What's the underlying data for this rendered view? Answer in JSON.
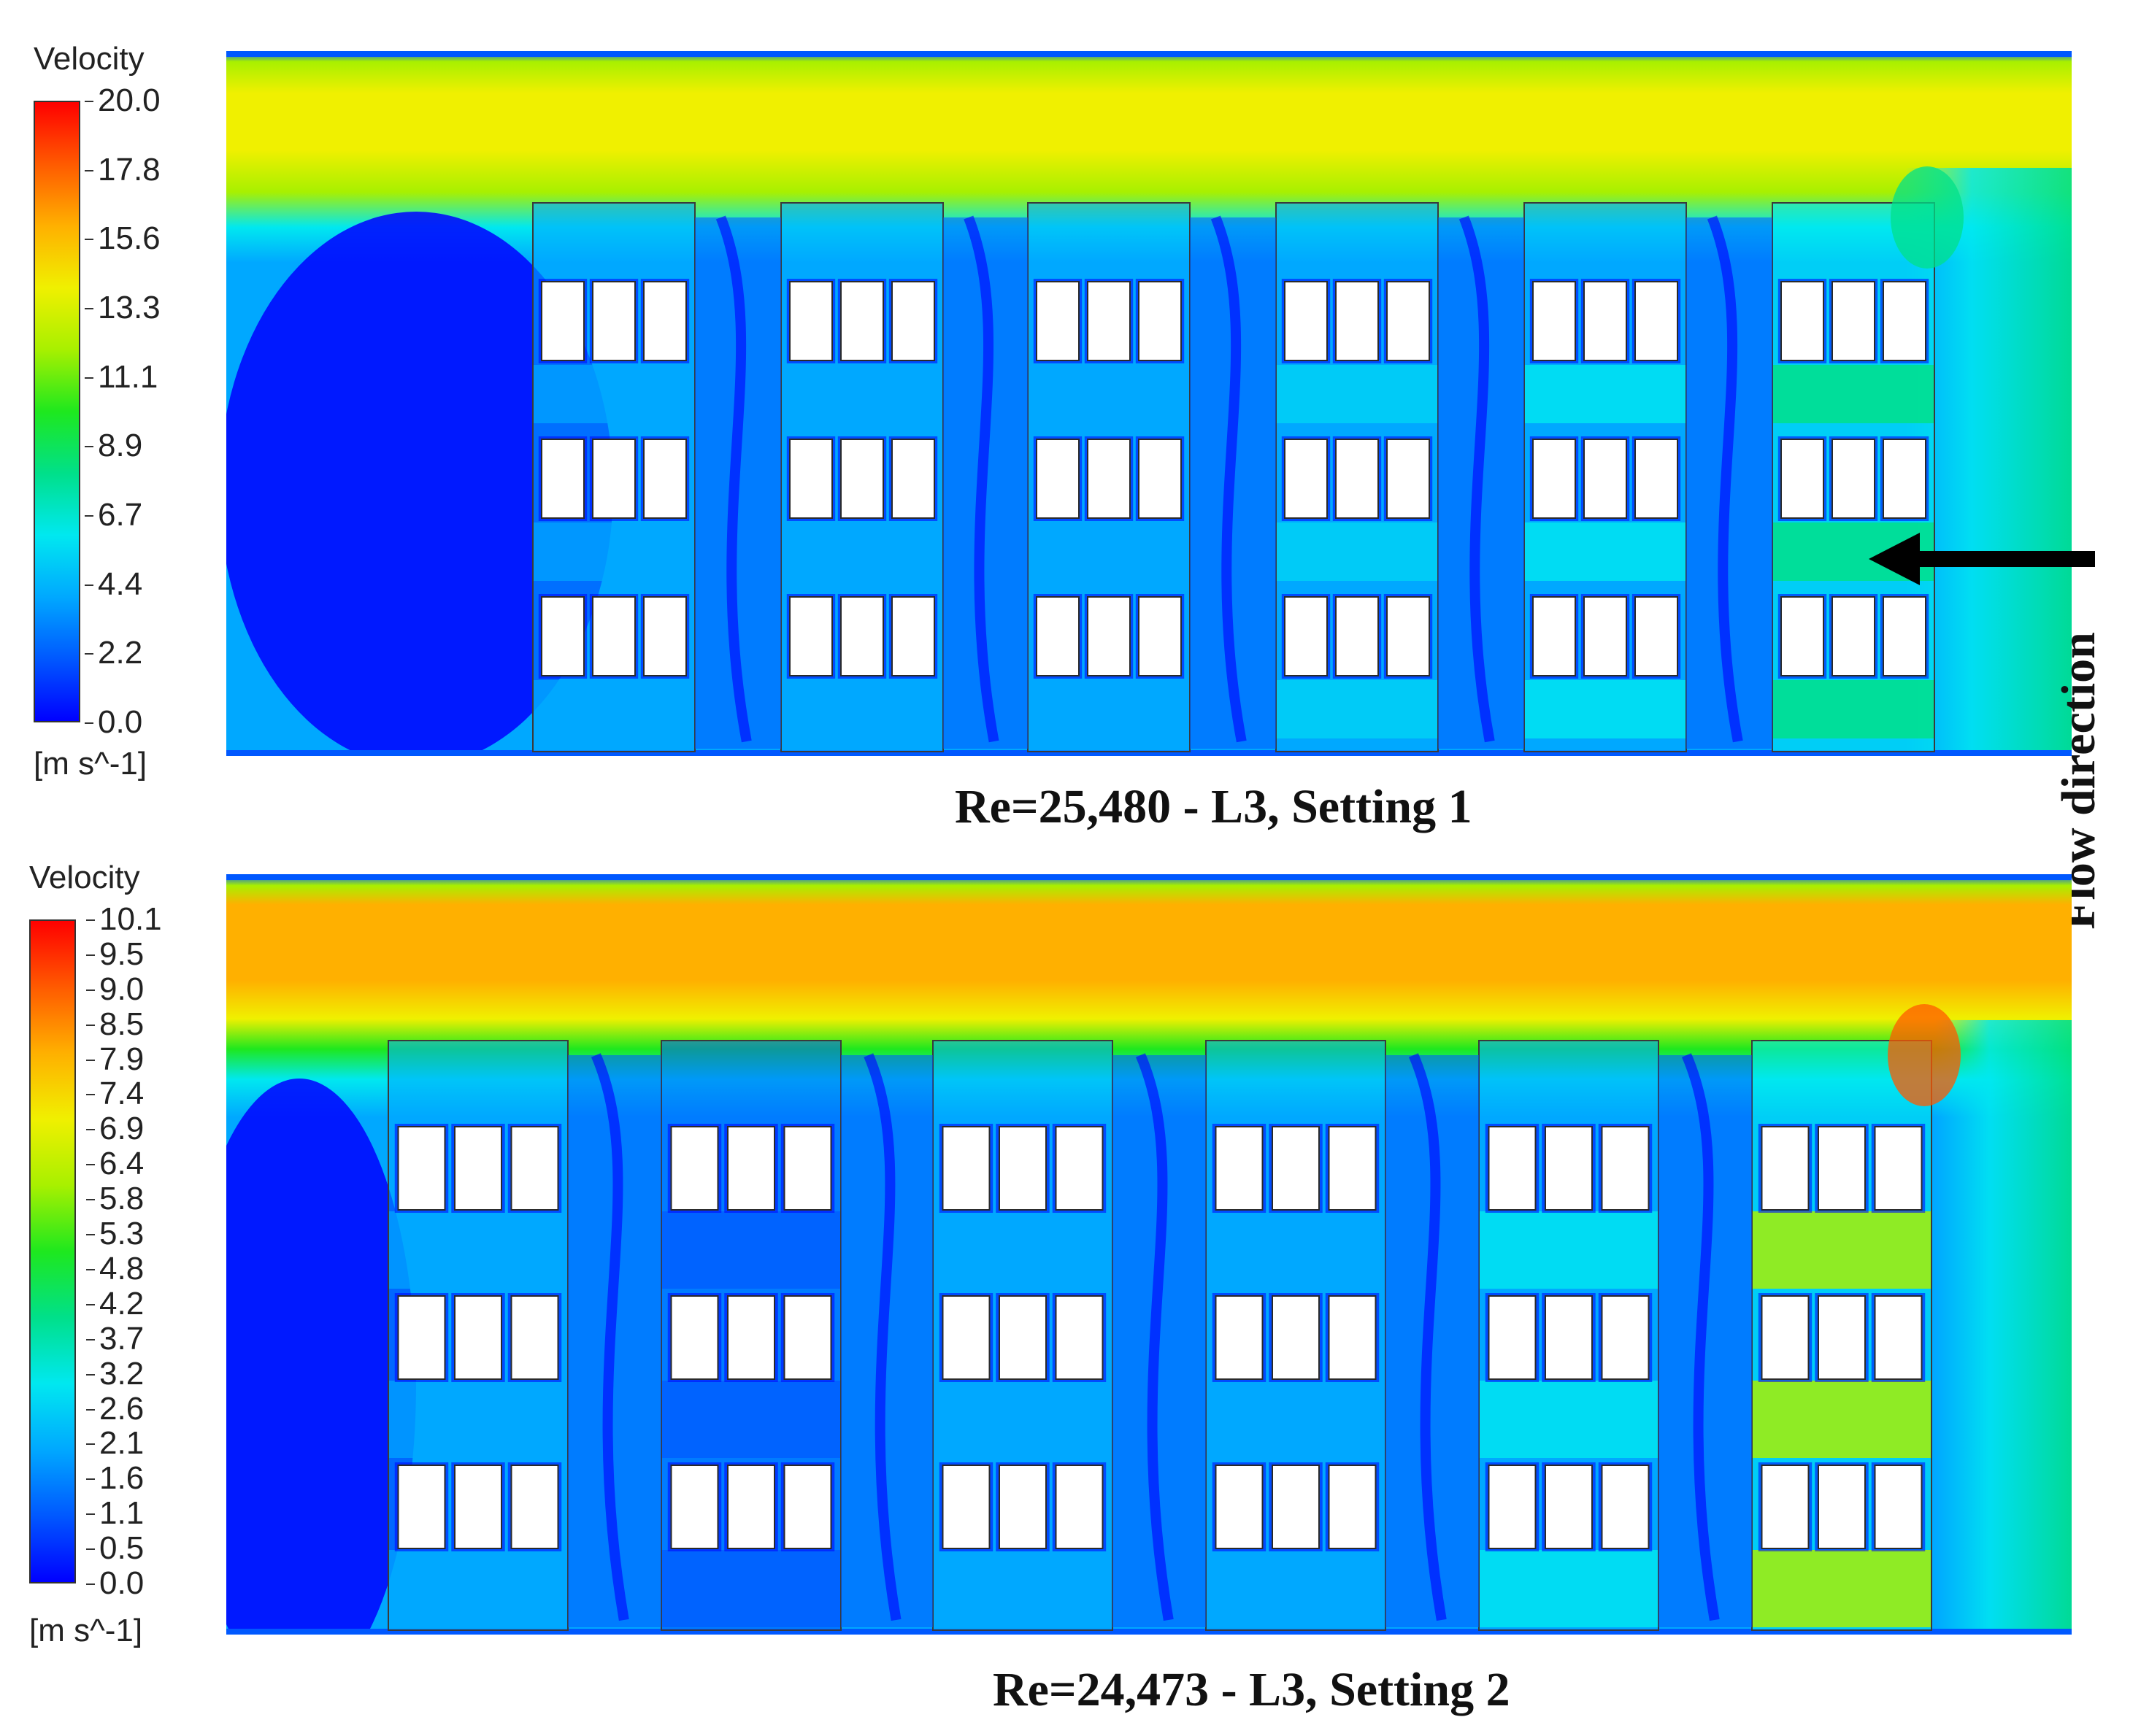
{
  "flow_direction_label": "Flow direction",
  "panels": [
    {
      "legend": {
        "title": "Velocity",
        "unit": "[m s^-1]",
        "ticks": [
          "20.0",
          "17.8",
          "15.6",
          "13.3",
          "11.1",
          "8.9",
          "6.7",
          "4.4",
          "2.2",
          "0.0"
        ]
      },
      "caption": "Re=25,480  - L3, Setting 1"
    },
    {
      "legend": {
        "title": "Velocity",
        "unit": "[m s^-1]",
        "ticks": [
          "10.1",
          "9.5",
          "9.0",
          "8.5",
          "7.9",
          "7.4",
          "6.9",
          "6.4",
          "5.8",
          "5.3",
          "4.8",
          "4.2",
          "3.7",
          "3.2",
          "2.6",
          "2.1",
          "1.6",
          "1.1",
          "0.5",
          "0.0"
        ]
      },
      "caption": "Re=24,473   - L3, Setting 2"
    }
  ],
  "colormap": [
    "#0000ff",
    "#0058ff",
    "#00a8ff",
    "#00e8f0",
    "#00e08a",
    "#1ee81e",
    "#a8f000",
    "#f0f000",
    "#ffb000",
    "#ff5a00",
    "#ff0000"
  ]
}
